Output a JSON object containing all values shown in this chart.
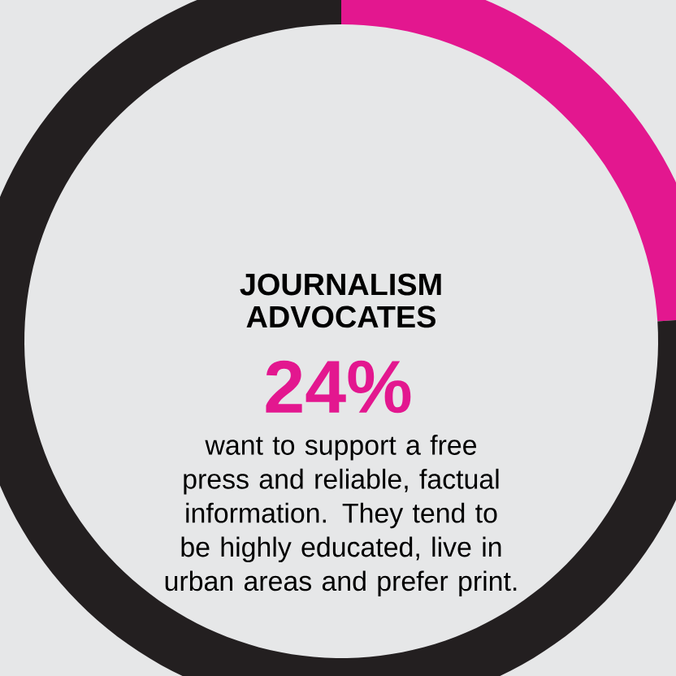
{
  "chart_data": {
    "type": "donut",
    "categories": [
      "JOURNALISM ADVOCATES",
      null
    ],
    "values": [
      24,
      76
    ],
    "colors": [
      "#e3178f",
      "#231f20"
    ],
    "value_labels": [
      "24%",
      null
    ],
    "annotations": [
      "want to support a free press and reliable, factual information. They tend to be highly educated, live in urban areas and prefer print."
    ]
  }
}
